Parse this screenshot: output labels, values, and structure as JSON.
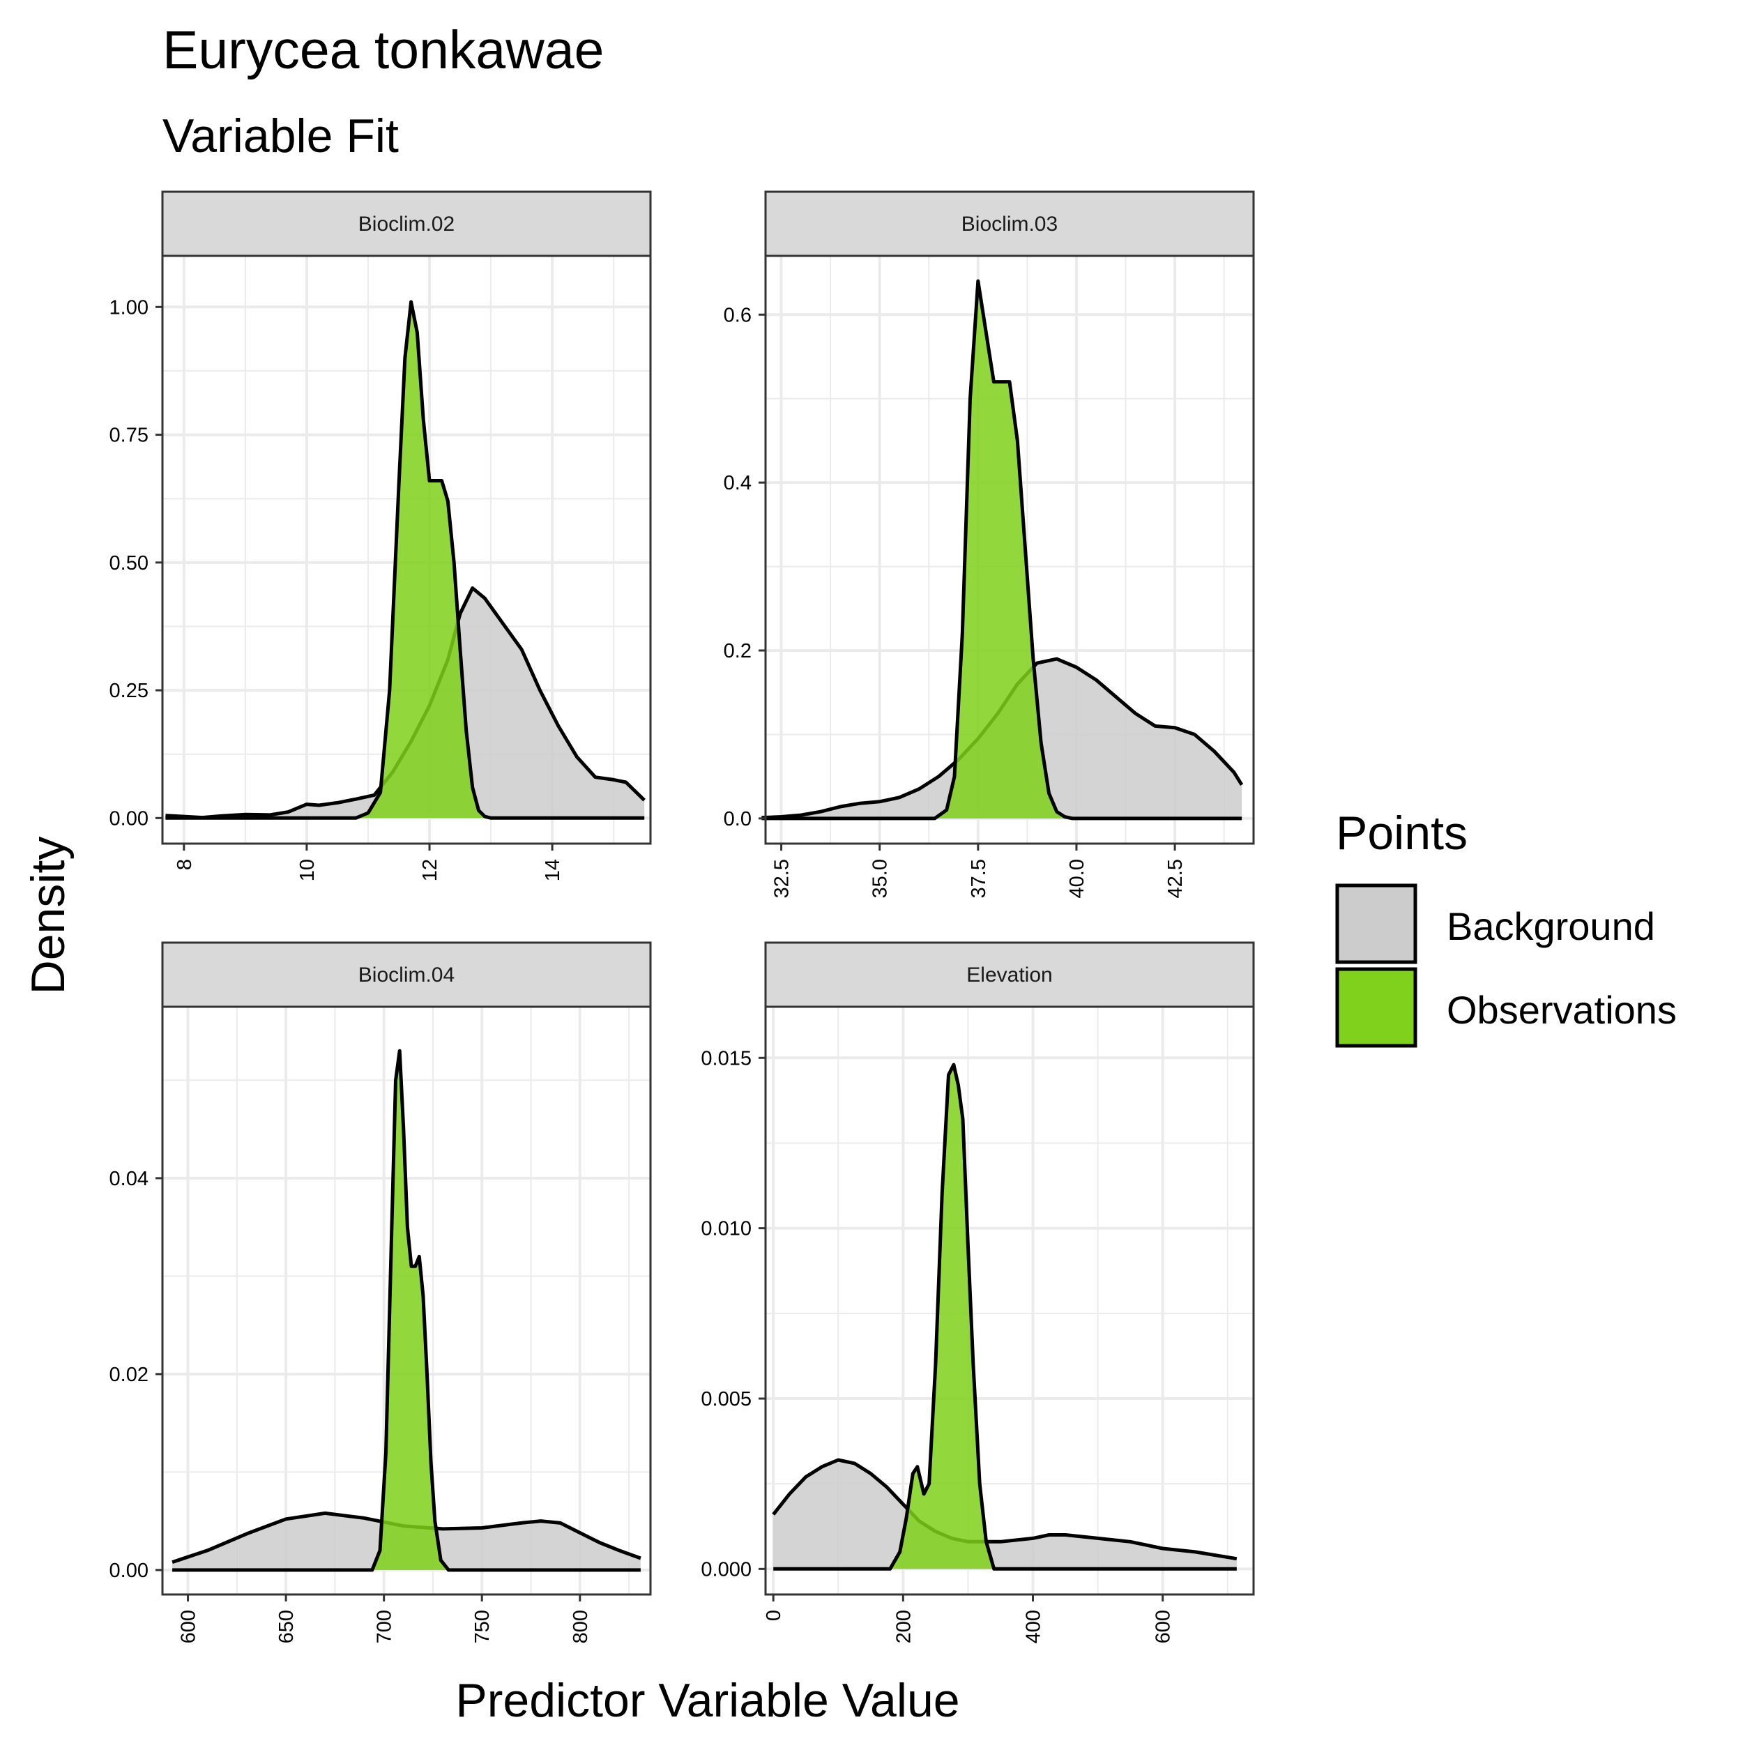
{
  "title": "Eurycea tonkawae",
  "subtitle": "Variable Fit",
  "xlabel": "Predictor Variable Value",
  "ylabel": "Density",
  "legend": {
    "title": "Points",
    "placement": "right",
    "items": [
      {
        "label": "Background",
        "color": "#cccccc"
      },
      {
        "label": "Observations",
        "color": "#7fd11b"
      }
    ]
  },
  "colors": {
    "background_fill": "#cccccc",
    "observation_fill": "#7fd11b",
    "strip_fill": "#d9d9d9",
    "grid": "#ebebeb"
  },
  "chart_data": [
    {
      "type": "area",
      "panel": "Bioclim.02",
      "xlim": [
        7.65,
        15.6
      ],
      "ylim": [
        -0.05,
        1.1
      ],
      "x_ticks": [
        8,
        10,
        12,
        14
      ],
      "x_tick_labels": [
        "8",
        "10",
        "12",
        "14"
      ],
      "y_ticks": [
        0,
        0.25,
        0.5,
        0.75,
        1.0
      ],
      "y_tick_labels": [
        "0.00",
        "0.25",
        "0.50",
        "0.75",
        "1.00"
      ],
      "series": [
        {
          "name": "Background",
          "x": [
            7.7,
            8.0,
            8.3,
            8.6,
            9.0,
            9.4,
            9.7,
            10.0,
            10.2,
            10.5,
            10.8,
            11.1,
            11.4,
            11.7,
            12.0,
            12.3,
            12.5,
            12.7,
            12.9,
            13.2,
            13.5,
            13.8,
            14.1,
            14.4,
            14.7,
            15.0,
            15.2,
            15.5
          ],
          "y": [
            0.005,
            0.003,
            0.001,
            0.004,
            0.007,
            0.006,
            0.012,
            0.027,
            0.025,
            0.03,
            0.037,
            0.045,
            0.09,
            0.15,
            0.22,
            0.31,
            0.4,
            0.45,
            0.43,
            0.38,
            0.33,
            0.25,
            0.18,
            0.12,
            0.08,
            0.075,
            0.07,
            0.035
          ]
        },
        {
          "name": "Observations",
          "x": [
            7.7,
            10.8,
            11.0,
            11.2,
            11.35,
            11.5,
            11.6,
            11.7,
            11.8,
            11.9,
            12.0,
            12.1,
            12.2,
            12.3,
            12.4,
            12.5,
            12.6,
            12.7,
            12.8,
            12.9,
            13.0,
            15.5
          ],
          "y": [
            0,
            0,
            0.01,
            0.05,
            0.25,
            0.65,
            0.9,
            1.01,
            0.95,
            0.78,
            0.66,
            0.66,
            0.66,
            0.62,
            0.5,
            0.33,
            0.17,
            0.06,
            0.015,
            0.003,
            0,
            0
          ]
        }
      ]
    },
    {
      "type": "area",
      "panel": "Bioclim.03",
      "xlim": [
        32.1,
        44.5
      ],
      "ylim": [
        -0.03,
        0.67
      ],
      "x_ticks": [
        32.5,
        35.0,
        37.5,
        40.0,
        42.5
      ],
      "x_tick_labels": [
        "32.5",
        "35.0",
        "37.5",
        "40.0",
        "42.5"
      ],
      "y_ticks": [
        0,
        0.2,
        0.4,
        0.6
      ],
      "y_tick_labels": [
        "0.0",
        "0.2",
        "0.4",
        "0.6"
      ],
      "series": [
        {
          "name": "Background",
          "x": [
            32.0,
            32.5,
            33.0,
            33.5,
            34.0,
            34.5,
            35.0,
            35.5,
            36.0,
            36.5,
            37.0,
            37.5,
            38.0,
            38.5,
            39.0,
            39.5,
            40.0,
            40.5,
            41.0,
            41.5,
            42.0,
            42.5,
            43.0,
            43.5,
            44.0,
            44.2
          ],
          "y": [
            0.001,
            0.002,
            0.004,
            0.008,
            0.014,
            0.018,
            0.02,
            0.025,
            0.035,
            0.05,
            0.07,
            0.095,
            0.125,
            0.16,
            0.185,
            0.19,
            0.18,
            0.165,
            0.145,
            0.125,
            0.11,
            0.108,
            0.1,
            0.08,
            0.055,
            0.04
          ]
        },
        {
          "name": "Observations",
          "x": [
            32.0,
            36.4,
            36.7,
            36.9,
            37.1,
            37.3,
            37.5,
            37.7,
            37.9,
            38.1,
            38.3,
            38.5,
            38.7,
            38.9,
            39.1,
            39.3,
            39.5,
            39.7,
            39.9,
            44.2
          ],
          "y": [
            0,
            0,
            0.01,
            0.05,
            0.22,
            0.5,
            0.64,
            0.58,
            0.52,
            0.52,
            0.52,
            0.45,
            0.32,
            0.19,
            0.09,
            0.03,
            0.008,
            0.002,
            0,
            0
          ]
        }
      ]
    },
    {
      "type": "area",
      "panel": "Bioclim.04",
      "xlim": [
        587,
        836
      ],
      "ylim": [
        -0.0025,
        0.0575
      ],
      "x_ticks": [
        600,
        650,
        700,
        750,
        800
      ],
      "x_tick_labels": [
        "600",
        "650",
        "700",
        "750",
        "800"
      ],
      "y_ticks": [
        0,
        0.02,
        0.04
      ],
      "y_tick_labels": [
        "0.00",
        "0.02",
        "0.04"
      ],
      "series": [
        {
          "name": "Background",
          "x": [
            592,
            610,
            630,
            650,
            670,
            690,
            710,
            730,
            750,
            770,
            780,
            790,
            800,
            810,
            820,
            831
          ],
          "y": [
            0.0008,
            0.002,
            0.0037,
            0.0052,
            0.0058,
            0.0053,
            0.0045,
            0.0042,
            0.0043,
            0.0048,
            0.005,
            0.0048,
            0.0038,
            0.0028,
            0.002,
            0.0012
          ]
        },
        {
          "name": "Observations",
          "x": [
            592,
            694,
            698,
            701,
            704,
            706,
            708,
            710,
            712,
            714,
            716,
            718,
            720,
            722,
            724,
            726,
            729,
            733,
            831
          ],
          "y": [
            0,
            0,
            0.002,
            0.012,
            0.035,
            0.05,
            0.053,
            0.045,
            0.035,
            0.031,
            0.031,
            0.032,
            0.028,
            0.02,
            0.011,
            0.005,
            0.001,
            0,
            0
          ]
        }
      ]
    },
    {
      "type": "area",
      "panel": "Elevation",
      "xlim": [
        -12,
        740
      ],
      "ylim": [
        -0.00075,
        0.0165
      ],
      "x_ticks": [
        0,
        200,
        400,
        600
      ],
      "x_tick_labels": [
        "0",
        "200",
        "400",
        "600"
      ],
      "y_ticks": [
        0,
        0.005,
        0.01,
        0.015
      ],
      "y_tick_labels": [
        "0.000",
        "0.005",
        "0.010",
        "0.015"
      ],
      "series": [
        {
          "name": "Background",
          "x": [
            0,
            25,
            50,
            75,
            100,
            125,
            150,
            175,
            200,
            225,
            250,
            275,
            300,
            325,
            350,
            400,
            425,
            450,
            500,
            550,
            600,
            650,
            714
          ],
          "y": [
            0.0016,
            0.0022,
            0.0027,
            0.003,
            0.0032,
            0.0031,
            0.0028,
            0.0024,
            0.0019,
            0.0014,
            0.0011,
            0.0009,
            0.0008,
            0.0008,
            0.0008,
            0.0009,
            0.001,
            0.001,
            0.0009,
            0.0008,
            0.0006,
            0.0005,
            0.0003
          ]
        },
        {
          "name": "Observations",
          "x": [
            0,
            180,
            195,
            205,
            215,
            222,
            232,
            240,
            250,
            260,
            270,
            278,
            285,
            292,
            300,
            308,
            318,
            328,
            340,
            714
          ],
          "y": [
            0,
            0,
            0.0005,
            0.0015,
            0.0028,
            0.003,
            0.0022,
            0.0025,
            0.006,
            0.011,
            0.0145,
            0.0148,
            0.0142,
            0.0132,
            0.0095,
            0.006,
            0.0025,
            0.0008,
            0,
            0
          ]
        }
      ]
    }
  ]
}
